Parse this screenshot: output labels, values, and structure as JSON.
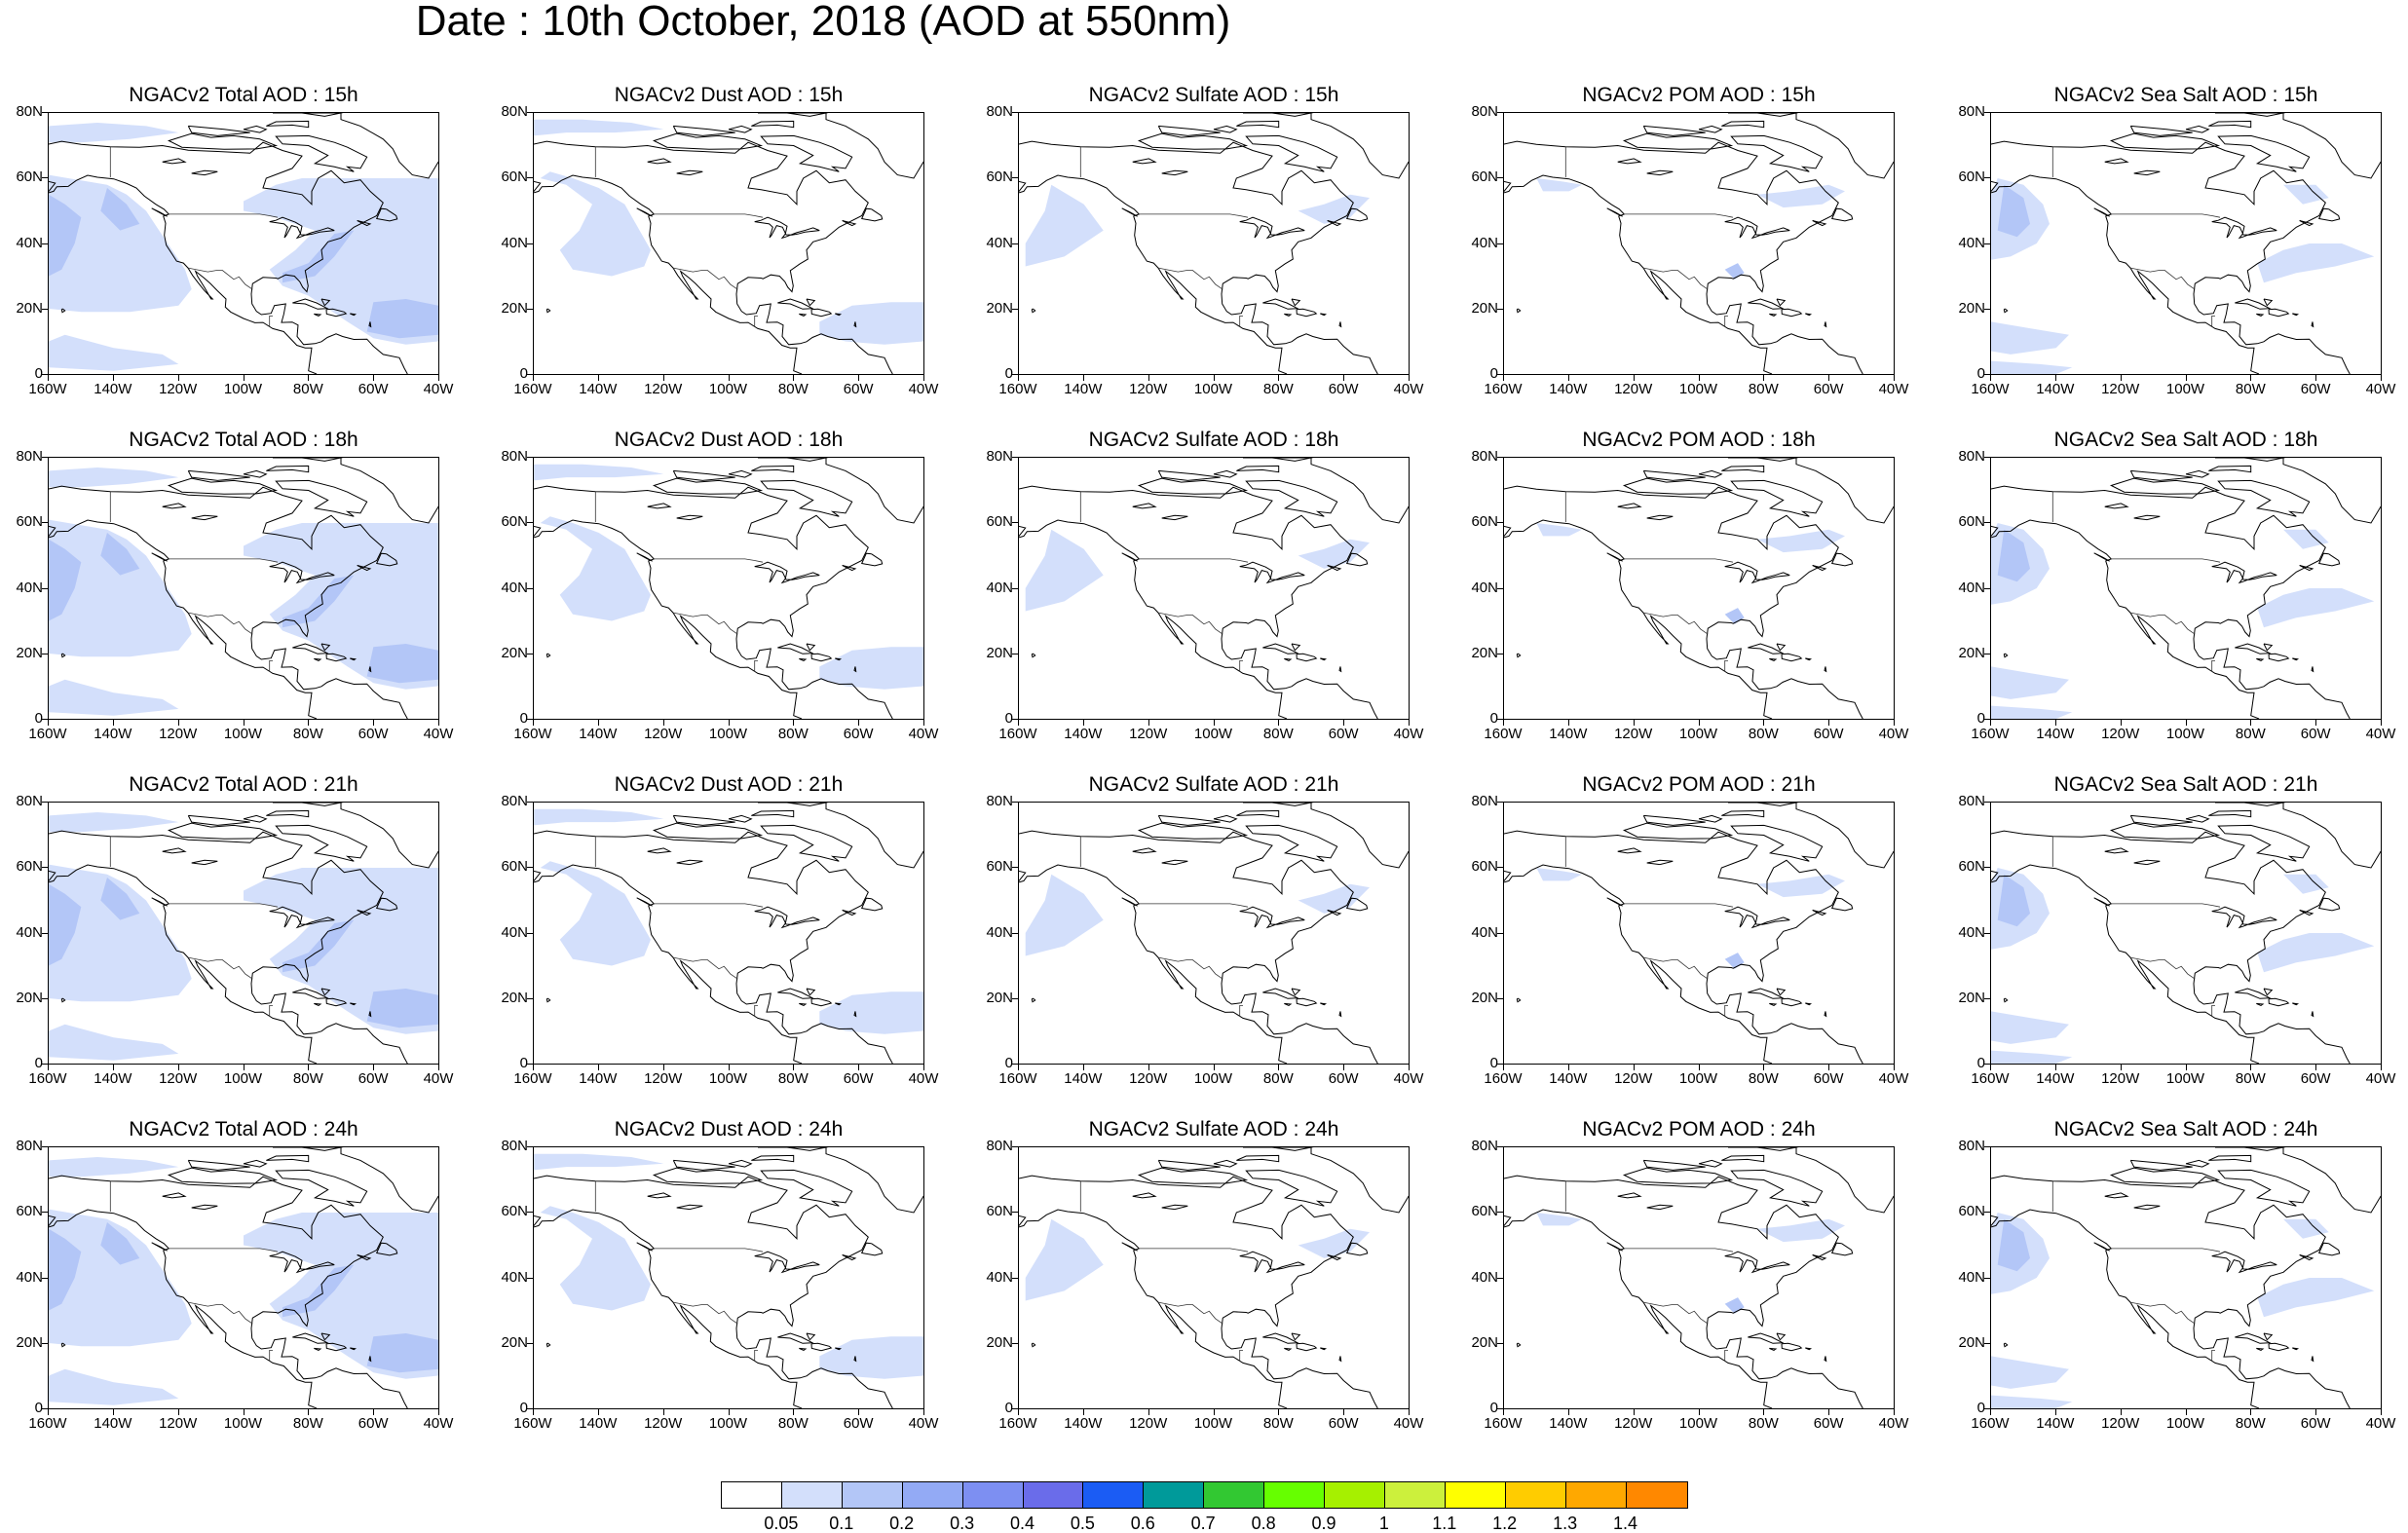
{
  "title": "Date : 10th October, 2018 (AOD at 550nm)",
  "axes": {
    "lat_labels": [
      "80N",
      "60N",
      "40N",
      "20N",
      "0"
    ],
    "lon_labels": [
      "160W",
      "140W",
      "120W",
      "100W",
      "80W",
      "60W",
      "40W"
    ]
  },
  "panels": [
    {
      "title": "NGACv2 Total AOD : 15h",
      "species": "total",
      "hour": 15
    },
    {
      "title": "NGACv2 Dust AOD : 15h",
      "species": "dust",
      "hour": 15
    },
    {
      "title": "NGACv2 Sulfate AOD : 15h",
      "species": "sulfate",
      "hour": 15
    },
    {
      "title": "NGACv2 POM AOD : 15h",
      "species": "pom",
      "hour": 15
    },
    {
      "title": "NGACv2 Sea Salt AOD : 15h",
      "species": "seasalt",
      "hour": 15
    },
    {
      "title": "NGACv2 Total AOD : 18h",
      "species": "total",
      "hour": 18
    },
    {
      "title": "NGACv2 Dust AOD : 18h",
      "species": "dust",
      "hour": 18
    },
    {
      "title": "NGACv2 Sulfate AOD : 18h",
      "species": "sulfate",
      "hour": 18
    },
    {
      "title": "NGACv2 POM AOD : 18h",
      "species": "pom",
      "hour": 18
    },
    {
      "title": "NGACv2 Sea Salt AOD : 18h",
      "species": "seasalt",
      "hour": 18
    },
    {
      "title": "NGACv2 Total AOD : 21h",
      "species": "total",
      "hour": 21
    },
    {
      "title": "NGACv2 Dust AOD : 21h",
      "species": "dust",
      "hour": 21
    },
    {
      "title": "NGACv2 Sulfate AOD : 21h",
      "species": "sulfate",
      "hour": 21
    },
    {
      "title": "NGACv2 POM AOD : 21h",
      "species": "pom",
      "hour": 21
    },
    {
      "title": "NGACv2 Sea Salt AOD : 21h",
      "species": "seasalt",
      "hour": 21
    },
    {
      "title": "NGACv2 Total AOD : 24h",
      "species": "total",
      "hour": 24
    },
    {
      "title": "NGACv2 Dust AOD : 24h",
      "species": "dust",
      "hour": 24
    },
    {
      "title": "NGACv2 Sulfate AOD : 24h",
      "species": "sulfate",
      "hour": 24
    },
    {
      "title": "NGACv2 POM AOD : 24h",
      "species": "pom",
      "hour": 24
    },
    {
      "title": "NGACv2 Sea Salt  AOD : 24h",
      "species": "seasalt",
      "hour": 24
    }
  ],
  "colorbar": {
    "colors": [
      "#ffffff",
      "#d3dffb",
      "#b3c6f7",
      "#93aaf5",
      "#7d8ff2",
      "#6a6cea",
      "#1b5cf4",
      "#009a9a",
      "#32c832",
      "#66ff00",
      "#a6f000",
      "#ccf03c",
      "#ffff00",
      "#ffcc00",
      "#ffa800",
      "#ff8800",
      "#ff5a00",
      "#ff2400"
    ],
    "labels": [
      "0.05",
      "0.1",
      "0.2",
      "0.3",
      "0.4",
      "0.5",
      "0.6",
      "0.7",
      "0.8",
      "0.9",
      "1",
      "1.1",
      "1.2",
      "1.3",
      "1.4"
    ]
  }
}
